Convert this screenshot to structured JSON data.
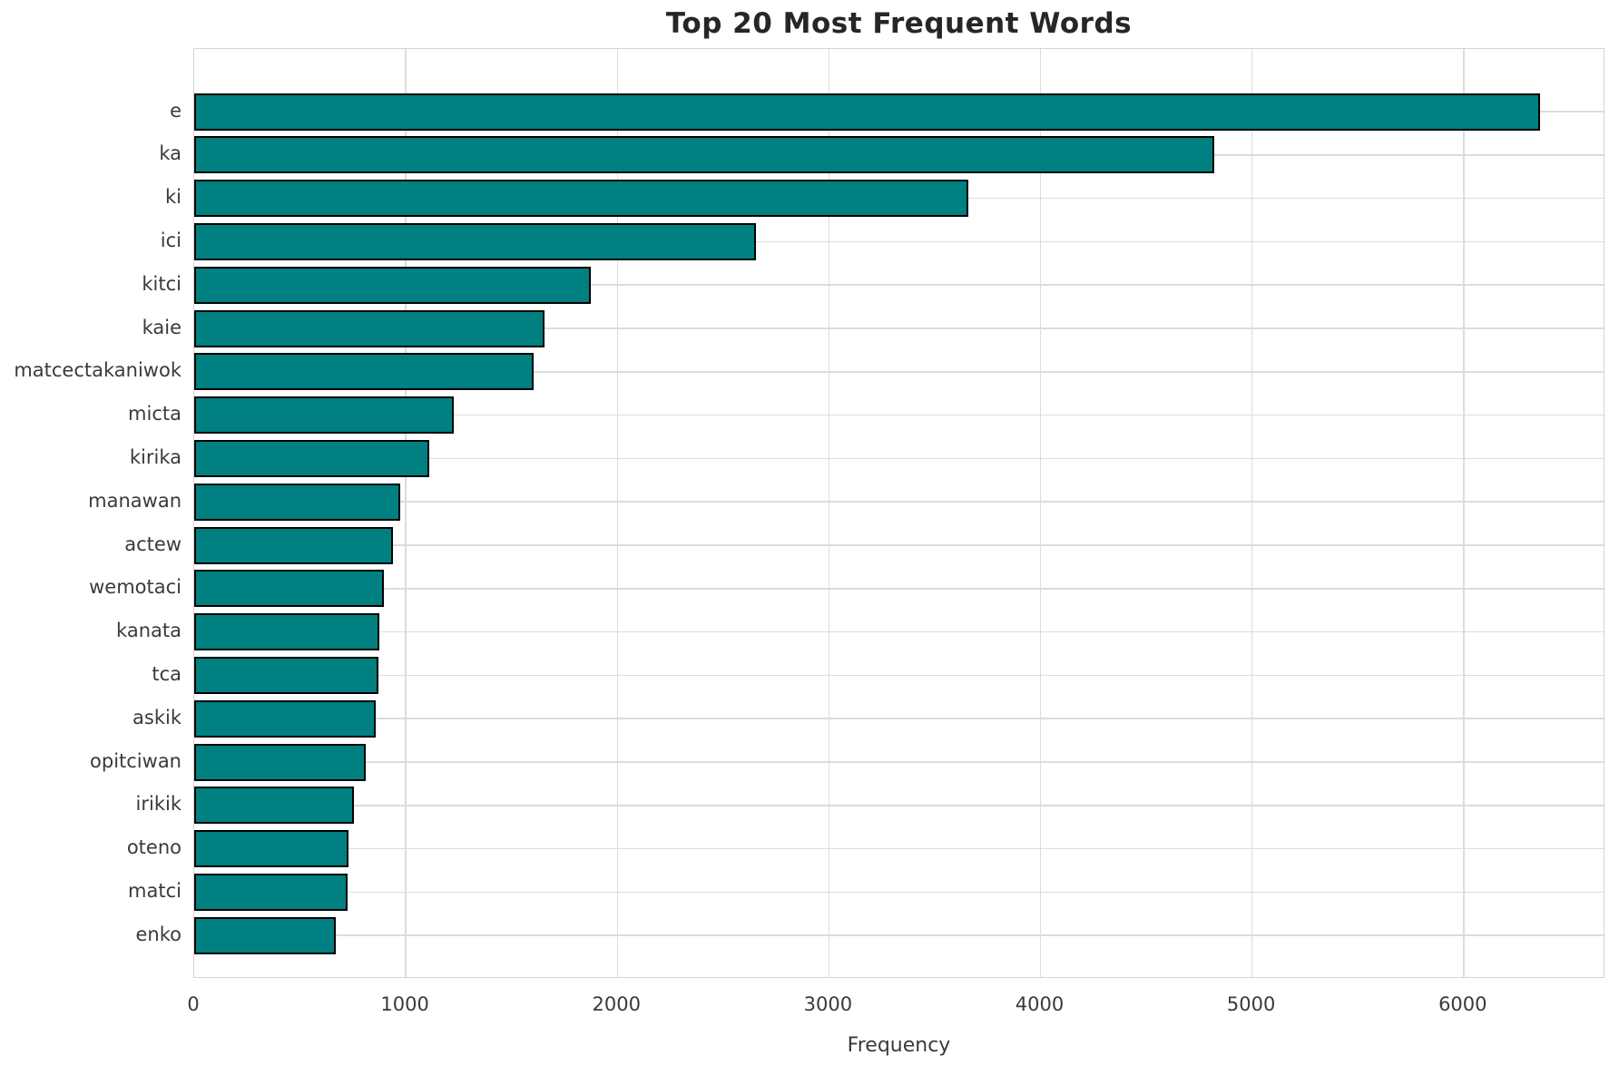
{
  "chart_data": {
    "type": "bar",
    "orientation": "horizontal",
    "title": "Top 20 Most Frequent Words",
    "xlabel": "Frequency",
    "ylabel": "",
    "categories": [
      "e",
      "ka",
      "ki",
      "ici",
      "kitci",
      "kaie",
      "matcectakaniwok",
      "micta",
      "kirika",
      "manawan",
      "actew",
      "wemotaci",
      "kanata",
      "tca",
      "askik",
      "opitciwan",
      "irikik",
      "oteno",
      "matci",
      "enko"
    ],
    "values": [
      6360,
      4820,
      3660,
      2655,
      1875,
      1655,
      1605,
      1225,
      1110,
      975,
      940,
      895,
      875,
      870,
      860,
      810,
      755,
      730,
      725,
      670
    ],
    "xticks": [
      0,
      1000,
      2000,
      3000,
      4000,
      5000,
      6000
    ],
    "xlim": [
      0,
      6670
    ],
    "grid": true,
    "legend": "none",
    "colors": {
      "bar_fill": "#008080",
      "bar_edge": "#000000",
      "gridline": "#dcdcdc",
      "spine": "#d4d4d4",
      "title_text": "#262626",
      "tick_text": "#3a3a3a",
      "background": "#ffffff"
    }
  }
}
